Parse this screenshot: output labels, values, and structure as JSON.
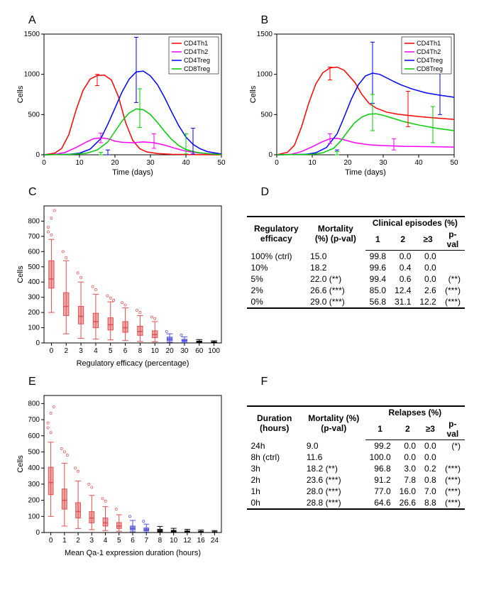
{
  "colors": {
    "CD4Th1": "#ff0000",
    "CD4Th2": "#ff00ff",
    "CD4Treg": "#0000ff",
    "CD8Treg": "#00cc00",
    "boxRed": "#e05050",
    "boxBlue": "#5050e0",
    "boxBlack": "#000000",
    "axis": "#000000",
    "bg": "#ffffff"
  },
  "panelA": {
    "label": "A",
    "xLabel": "Time (days)",
    "yLabel": "Cells",
    "xlim": [
      0,
      50
    ],
    "ylim": [
      0,
      1500
    ],
    "xticks": [
      0,
      10,
      20,
      30,
      40,
      50
    ],
    "yticks": [
      0,
      500,
      1000,
      1500
    ],
    "legend": [
      "CD4Th1",
      "CD4Th2",
      "CD4Treg",
      "CD8Treg"
    ],
    "series": {
      "CD4Th1": [
        [
          0,
          0
        ],
        [
          3,
          20
        ],
        [
          5,
          80
        ],
        [
          7,
          250
        ],
        [
          9,
          550
        ],
        [
          11,
          800
        ],
        [
          13,
          940
        ],
        [
          15,
          985
        ],
        [
          17,
          990
        ],
        [
          19,
          930
        ],
        [
          21,
          720
        ],
        [
          23,
          400
        ],
        [
          25,
          180
        ],
        [
          27,
          75
        ],
        [
          29,
          35
        ],
        [
          32,
          15
        ],
        [
          36,
          6
        ],
        [
          42,
          2
        ],
        [
          50,
          0
        ]
      ],
      "CD4Th2": [
        [
          0,
          0
        ],
        [
          3,
          5
        ],
        [
          6,
          30
        ],
        [
          9,
          90
        ],
        [
          12,
          160
        ],
        [
          14,
          200
        ],
        [
          16,
          210
        ],
        [
          18,
          200
        ],
        [
          20,
          170
        ],
        [
          22,
          155
        ],
        [
          25,
          150
        ],
        [
          28,
          160
        ],
        [
          31,
          150
        ],
        [
          34,
          120
        ],
        [
          37,
          80
        ],
        [
          40,
          45
        ],
        [
          44,
          20
        ],
        [
          50,
          5
        ]
      ],
      "CD4Treg": [
        [
          0,
          0
        ],
        [
          7,
          5
        ],
        [
          10,
          20
        ],
        [
          13,
          70
        ],
        [
          16,
          200
        ],
        [
          18,
          380
        ],
        [
          20,
          580
        ],
        [
          22,
          780
        ],
        [
          24,
          940
        ],
        [
          26,
          1030
        ],
        [
          28,
          1040
        ],
        [
          30,
          980
        ],
        [
          32,
          870
        ],
        [
          34,
          710
        ],
        [
          36,
          530
        ],
        [
          38,
          360
        ],
        [
          40,
          220
        ],
        [
          42,
          130
        ],
        [
          44,
          75
        ],
        [
          46,
          40
        ],
        [
          50,
          10
        ]
      ],
      "CD8Treg": [
        [
          0,
          0
        ],
        [
          8,
          5
        ],
        [
          12,
          20
        ],
        [
          15,
          60
        ],
        [
          18,
          160
        ],
        [
          20,
          290
        ],
        [
          22,
          420
        ],
        [
          24,
          520
        ],
        [
          26,
          570
        ],
        [
          28,
          560
        ],
        [
          30,
          500
        ],
        [
          32,
          400
        ],
        [
          34,
          290
        ],
        [
          36,
          190
        ],
        [
          38,
          115
        ],
        [
          40,
          65
        ],
        [
          43,
          30
        ],
        [
          47,
          10
        ],
        [
          50,
          3
        ]
      ]
    },
    "errorBars": {
      "CD4Th1": [
        [
          15,
          985,
          860,
          1000
        ]
      ],
      "CD4Th2": [
        [
          16,
          210,
          150,
          270
        ],
        [
          31,
          150,
          80,
          260
        ]
      ],
      "CD4Treg": [
        [
          18,
          380,
          -10,
          60
        ],
        [
          26,
          1030,
          650,
          1460
        ],
        [
          42,
          130,
          10,
          330
        ]
      ],
      "CD8Treg": [
        [
          16,
          80,
          -10,
          30
        ],
        [
          27,
          565,
          340,
          820
        ],
        [
          40,
          65,
          10,
          260
        ]
      ]
    }
  },
  "panelB": {
    "label": "B",
    "xLabel": "Time (days)",
    "yLabel": "Cells",
    "xlim": [
      0,
      50
    ],
    "ylim": [
      0,
      1500
    ],
    "xticks": [
      0,
      10,
      20,
      30,
      40,
      50
    ],
    "yticks": [
      0,
      500,
      1000,
      1500
    ],
    "legend": [
      "CD4Th1",
      "CD4Th2",
      "CD4Treg",
      "CD8Treg"
    ],
    "series": {
      "CD4Th1": [
        [
          0,
          0
        ],
        [
          3,
          30
        ],
        [
          5,
          120
        ],
        [
          7,
          350
        ],
        [
          9,
          640
        ],
        [
          11,
          880
        ],
        [
          13,
          1020
        ],
        [
          15,
          1080
        ],
        [
          17,
          1090
        ],
        [
          19,
          1050
        ],
        [
          22,
          900
        ],
        [
          24,
          750
        ],
        [
          26,
          640
        ],
        [
          28,
          580
        ],
        [
          31,
          530
        ],
        [
          34,
          505
        ],
        [
          37,
          490
        ],
        [
          40,
          475
        ],
        [
          44,
          460
        ],
        [
          50,
          440
        ]
      ],
      "CD4Th2": [
        [
          0,
          0
        ],
        [
          4,
          5
        ],
        [
          7,
          40
        ],
        [
          10,
          100
        ],
        [
          13,
          165
        ],
        [
          15,
          200
        ],
        [
          17,
          205
        ],
        [
          19,
          185
        ],
        [
          22,
          150
        ],
        [
          26,
          125
        ],
        [
          30,
          115
        ],
        [
          36,
          105
        ],
        [
          44,
          100
        ],
        [
          50,
          95
        ]
      ],
      "CD4Treg": [
        [
          0,
          0
        ],
        [
          8,
          5
        ],
        [
          11,
          25
        ],
        [
          14,
          90
        ],
        [
          17,
          260
        ],
        [
          19,
          470
        ],
        [
          21,
          690
        ],
        [
          23,
          870
        ],
        [
          25,
          980
        ],
        [
          27,
          1015
        ],
        [
          29,
          1000
        ],
        [
          31,
          955
        ],
        [
          33,
          910
        ],
        [
          35,
          870
        ],
        [
          38,
          820
        ],
        [
          42,
          770
        ],
        [
          46,
          740
        ],
        [
          50,
          715
        ]
      ],
      "CD8Treg": [
        [
          0,
          0
        ],
        [
          10,
          5
        ],
        [
          13,
          25
        ],
        [
          16,
          80
        ],
        [
          18,
          170
        ],
        [
          20,
          290
        ],
        [
          22,
          400
        ],
        [
          24,
          470
        ],
        [
          26,
          505
        ],
        [
          28,
          510
        ],
        [
          30,
          490
        ],
        [
          33,
          450
        ],
        [
          36,
          410
        ],
        [
          40,
          370
        ],
        [
          45,
          330
        ],
        [
          50,
          300
        ]
      ]
    },
    "errorBars": {
      "CD4Th1": [
        [
          15,
          1080,
          930,
          1090
        ],
        [
          37,
          490,
          350,
          790
        ]
      ],
      "CD4Th2": [
        [
          15,
          200,
          140,
          260
        ],
        [
          33,
          110,
          60,
          200
        ]
      ],
      "CD4Treg": [
        [
          17,
          260,
          -10,
          60
        ],
        [
          27,
          1015,
          640,
          1400
        ],
        [
          46,
          740,
          500,
          1030
        ]
      ],
      "CD8Treg": [
        [
          17,
          120,
          -10,
          40
        ],
        [
          27,
          507,
          300,
          750
        ],
        [
          44,
          335,
          150,
          600
        ]
      ]
    }
  },
  "panelC": {
    "label": "C",
    "xLabel": "Regulatory efficacy (percentage)",
    "yLabel": "Cells",
    "ylim": [
      0,
      900
    ],
    "yticks": [
      0,
      100,
      200,
      300,
      400,
      500,
      600,
      700,
      800
    ],
    "categories": [
      "0",
      "2",
      "3",
      "4",
      "5",
      "6",
      "8",
      "10",
      "20",
      "30",
      "60",
      "100"
    ],
    "boxes": [
      {
        "cat": "0",
        "median": 420,
        "q1": 360,
        "q3": 540,
        "lo": 200,
        "hi": 680,
        "col": "boxRed",
        "outliers": [
          760,
          820,
          870,
          730,
          710
        ]
      },
      {
        "cat": "2",
        "median": 240,
        "q1": 180,
        "q3": 330,
        "lo": 60,
        "hi": 540,
        "col": "boxRed",
        "outliers": [
          600,
          560
        ]
      },
      {
        "cat": "3",
        "median": 175,
        "q1": 125,
        "q3": 240,
        "lo": 30,
        "hi": 400,
        "col": "boxRed",
        "outliers": [
          460,
          430
        ]
      },
      {
        "cat": "4",
        "median": 140,
        "q1": 100,
        "q3": 195,
        "lo": 25,
        "hi": 320,
        "col": "boxRed",
        "outliers": [
          370,
          350
        ]
      },
      {
        "cat": "5",
        "median": 120,
        "q1": 85,
        "q3": 165,
        "lo": 20,
        "hi": 270,
        "col": "boxRed",
        "outliers": [
          310,
          295,
          280
        ]
      },
      {
        "cat": "6",
        "median": 100,
        "q1": 70,
        "q3": 140,
        "lo": 15,
        "hi": 230,
        "col": "boxRed",
        "outliers": [
          265,
          250
        ]
      },
      {
        "cat": "8",
        "median": 75,
        "q1": 50,
        "q3": 110,
        "lo": 10,
        "hi": 180,
        "col": "boxRed",
        "outliers": [
          215,
          200
        ]
      },
      {
        "cat": "10",
        "median": 55,
        "q1": 35,
        "q3": 80,
        "lo": 8,
        "hi": 140,
        "col": "boxRed",
        "outliers": [
          170,
          160
        ]
      },
      {
        "cat": "20",
        "median": 25,
        "q1": 15,
        "q3": 38,
        "lo": 5,
        "hi": 60,
        "col": "boxBlue",
        "outliers": [
          75
        ]
      },
      {
        "cat": "30",
        "median": 15,
        "q1": 10,
        "q3": 24,
        "lo": 3,
        "hi": 40,
        "col": "boxBlue",
        "outliers": [
          52
        ]
      },
      {
        "cat": "60",
        "median": 7,
        "q1": 4,
        "q3": 12,
        "lo": 1,
        "hi": 22,
        "col": "boxBlack",
        "outliers": []
      },
      {
        "cat": "100",
        "median": 4,
        "q1": 2,
        "q3": 7,
        "lo": 0,
        "hi": 14,
        "col": "boxBlack",
        "outliers": []
      }
    ]
  },
  "panelD": {
    "label": "D",
    "headerGroup1": "Regulatory efficacy",
    "headerGroup2": "Mortality (%) (p-val)",
    "headerGroup3": "Clinical episodes (%)",
    "cols": [
      "1",
      "2",
      "≥3",
      "p-val"
    ],
    "rows": [
      {
        "eff": "100% (ctrl)",
        "mort": "15.0",
        "c1": "99.8",
        "c2": "0.0",
        "c3": "0.0",
        "p": ""
      },
      {
        "eff": "10%",
        "mort": "18.2",
        "c1": "99.6",
        "c2": "0.4",
        "c3": "0.0",
        "p": ""
      },
      {
        "eff": "5%",
        "mort": "22.0 (**)",
        "c1": "99.4",
        "c2": "0.6",
        "c3": "0.0",
        "p": "(**)"
      },
      {
        "eff": "2%",
        "mort": "26.6 (***)",
        "c1": "85.0",
        "c2": "12.4",
        "c3": "2.6",
        "p": "(***)"
      },
      {
        "eff": "0%",
        "mort": "29.0 (***)",
        "c1": "56.8",
        "c2": "31.1",
        "c3": "12.2",
        "p": "(***)"
      }
    ]
  },
  "panelE": {
    "label": "E",
    "xLabel": "Mean Qa-1 expression duration (hours)",
    "yLabel": "Cells",
    "ylim": [
      0,
      850
    ],
    "yticks": [
      0,
      100,
      200,
      300,
      400,
      500,
      600,
      700,
      800
    ],
    "categories": [
      "0",
      "1",
      "2",
      "3",
      "4",
      "5",
      "6",
      "7",
      "8",
      "10",
      "12",
      "16",
      "24"
    ],
    "boxes": [
      {
        "cat": "0",
        "median": 310,
        "q1": 235,
        "q3": 405,
        "lo": 100,
        "hi": 560,
        "col": "boxRed",
        "outliers": [
          680,
          740,
          780,
          650,
          620
        ]
      },
      {
        "cat": "1",
        "median": 200,
        "q1": 145,
        "q3": 270,
        "lo": 40,
        "hi": 430,
        "col": "boxRed",
        "outliers": [
          520,
          500,
          480
        ]
      },
      {
        "cat": "2",
        "median": 130,
        "q1": 90,
        "q3": 185,
        "lo": 25,
        "hi": 320,
        "col": "boxRed",
        "outliers": [
          400,
          380
        ]
      },
      {
        "cat": "3",
        "median": 90,
        "q1": 60,
        "q3": 130,
        "lo": 18,
        "hi": 230,
        "col": "boxRed",
        "outliers": [
          300,
          280
        ]
      },
      {
        "cat": "4",
        "median": 60,
        "q1": 40,
        "q3": 90,
        "lo": 12,
        "hi": 160,
        "col": "boxRed",
        "outliers": [
          210,
          195
        ]
      },
      {
        "cat": "5",
        "median": 40,
        "q1": 25,
        "q3": 62,
        "lo": 8,
        "hi": 110,
        "col": "boxRed",
        "outliers": [
          145
        ]
      },
      {
        "cat": "6",
        "median": 26,
        "q1": 16,
        "q3": 40,
        "lo": 5,
        "hi": 75,
        "col": "boxBlue",
        "outliers": [
          100
        ]
      },
      {
        "cat": "7",
        "median": 18,
        "q1": 11,
        "q3": 28,
        "lo": 3,
        "hi": 52,
        "col": "boxBlue",
        "outliers": [
          70
        ]
      },
      {
        "cat": "8",
        "median": 12,
        "q1": 7,
        "q3": 20,
        "lo": 2,
        "hi": 38,
        "col": "boxBlack",
        "outliers": []
      },
      {
        "cat": "10",
        "median": 8,
        "q1": 4,
        "q3": 13,
        "lo": 1,
        "hi": 26,
        "col": "boxBlack",
        "outliers": []
      },
      {
        "cat": "12",
        "median": 6,
        "q1": 3,
        "q3": 10,
        "lo": 1,
        "hi": 20,
        "col": "boxBlack",
        "outliers": []
      },
      {
        "cat": "16",
        "median": 4,
        "q1": 2,
        "q3": 7,
        "lo": 0,
        "hi": 15,
        "col": "boxBlack",
        "outliers": []
      },
      {
        "cat": "24",
        "median": 3,
        "q1": 1,
        "q3": 5,
        "lo": 0,
        "hi": 12,
        "col": "boxBlack",
        "outliers": []
      }
    ]
  },
  "panelF": {
    "label": "F",
    "headerGroup1": "Duration (hours)",
    "headerGroup2": "Mortality (%) (p-val)",
    "headerGroup3": "Relapses (%)",
    "cols": [
      "1",
      "2",
      "≥3",
      "p-val"
    ],
    "rows": [
      {
        "eff": "24h",
        "mort": "9.0",
        "c1": "99.2",
        "c2": "0.0",
        "c3": "0.0",
        "p": "(*)"
      },
      {
        "eff": "8h (ctrl)",
        "mort": "11.6",
        "c1": "100.0",
        "c2": "0.0",
        "c3": "0.0",
        "p": ""
      },
      {
        "eff": "3h",
        "mort": "18.2 (**)",
        "c1": "96.8",
        "c2": "3.0",
        "c3": "0.2",
        "p": "(***)"
      },
      {
        "eff": "2h",
        "mort": "23.6 (***)",
        "c1": "91.2",
        "c2": "7.8",
        "c3": "0.8",
        "p": "(***)"
      },
      {
        "eff": "1h",
        "mort": "28.0 (***)",
        "c1": "77.0",
        "c2": "16.0",
        "c3": "7.0",
        "p": "(***)"
      },
      {
        "eff": "0h",
        "mort": "28.8 (***)",
        "c1": "64.6",
        "c2": "26.6",
        "c3": "8.8",
        "p": "(***)"
      }
    ]
  }
}
